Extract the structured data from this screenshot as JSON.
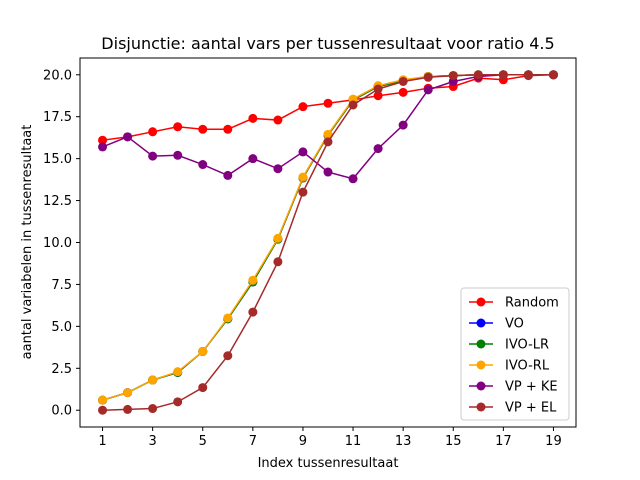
{
  "chart_data": {
    "type": "line",
    "title": "Disjunctie: aantal vars per tussenresultaat voor ratio 4.5",
    "xlabel": "Index tussenresultaat",
    "ylabel": "aantal variabelen in tussenresultaat",
    "x": [
      1,
      2,
      3,
      4,
      5,
      6,
      7,
      8,
      9,
      10,
      11,
      12,
      13,
      14,
      15,
      16,
      17,
      18,
      19
    ],
    "xticks": [
      "1",
      "3",
      "5",
      "7",
      "9",
      "11",
      "13",
      "15",
      "17",
      "19"
    ],
    "xtick_values": [
      1,
      3,
      5,
      7,
      9,
      11,
      13,
      15,
      17,
      19
    ],
    "yticks": [
      "0.0",
      "2.5",
      "5.0",
      "7.5",
      "10.0",
      "12.5",
      "15.0",
      "17.5",
      "20.0"
    ],
    "ytick_values": [
      0,
      2.5,
      5,
      7.5,
      10,
      12.5,
      15,
      17.5,
      20
    ],
    "xlim": [
      0.1,
      19.9
    ],
    "ylim": [
      -1.0,
      21.0
    ],
    "legend_position": "lower-right",
    "grid": false,
    "series": [
      {
        "name": "Random",
        "color": "#ff0000",
        "values": [
          16.1,
          16.3,
          16.6,
          16.9,
          16.75,
          16.75,
          17.4,
          17.3,
          18.1,
          18.3,
          18.5,
          18.75,
          18.95,
          19.2,
          19.3,
          19.8,
          19.7,
          19.95,
          20.0
        ]
      },
      {
        "name": "VO",
        "color": "#0000ff",
        "values": [
          0.6,
          1.05,
          1.8,
          2.25,
          3.5,
          5.45,
          7.65,
          10.2,
          13.85,
          16.4,
          18.5,
          19.3,
          19.65,
          19.9,
          19.95,
          20.0,
          20.0,
          20.0,
          20.0
        ]
      },
      {
        "name": "IVO-LR",
        "color": "#008000",
        "values": [
          0.6,
          1.05,
          1.8,
          2.25,
          3.5,
          5.45,
          7.65,
          10.2,
          13.85,
          16.4,
          18.5,
          19.3,
          19.65,
          19.9,
          19.95,
          20.0,
          20.0,
          20.0,
          20.0
        ]
      },
      {
        "name": "IVO-RL",
        "color": "#ffa500",
        "values": [
          0.6,
          1.05,
          1.8,
          2.3,
          3.5,
          5.5,
          7.75,
          10.25,
          13.9,
          16.45,
          18.55,
          19.35,
          19.7,
          19.9,
          19.95,
          20.0,
          20.0,
          20.0,
          20.0
        ]
      },
      {
        "name": "VP + KE",
        "color": "#800080",
        "values": [
          15.7,
          16.3,
          15.15,
          15.2,
          14.65,
          14.0,
          15.0,
          14.4,
          15.4,
          14.2,
          13.8,
          15.6,
          17.0,
          19.1,
          19.6,
          19.9,
          20.0,
          20.0,
          20.0
        ]
      },
      {
        "name": "VP + EL",
        "color": "#a52a2a",
        "values": [
          0.0,
          0.05,
          0.1,
          0.5,
          1.35,
          3.25,
          5.85,
          8.85,
          13.0,
          16.0,
          18.2,
          19.15,
          19.6,
          19.85,
          19.95,
          20.0,
          20.0,
          20.0,
          20.0
        ]
      }
    ]
  }
}
